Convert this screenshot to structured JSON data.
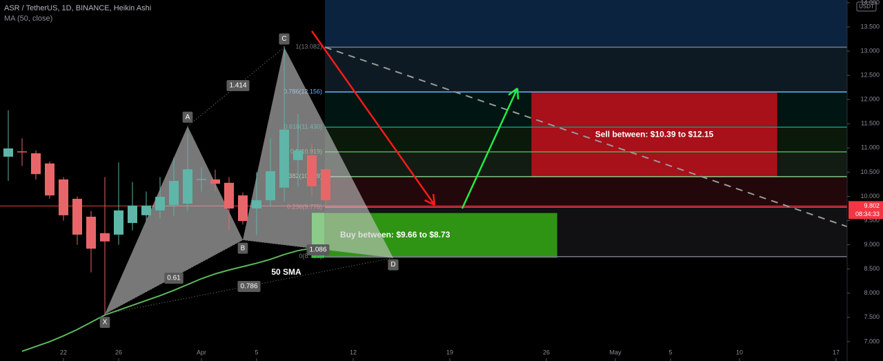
{
  "chart_data": {
    "type": "candlestick",
    "title": "ASR / TetherUS, 1D, BINANCE, Heikin Ashi",
    "subtitle": "MA (50, close)",
    "currency": "USDT",
    "up_color": "#5fb5a8",
    "down_color": "#e8666a",
    "xlim": [
      -0.6,
      60.8
    ],
    "xticks": [
      {
        "value": 4,
        "label": "22"
      },
      {
        "value": 8,
        "label": "26"
      },
      {
        "value": 14,
        "label": "Apr"
      },
      {
        "value": 18,
        "label": "5"
      },
      {
        "value": 25,
        "label": "12"
      },
      {
        "value": 32,
        "label": "19"
      },
      {
        "value": 39,
        "label": "26"
      },
      {
        "value": 44,
        "label": "May"
      },
      {
        "value": 48,
        "label": "5"
      },
      {
        "value": 53,
        "label": "10"
      },
      {
        "value": 60,
        "label": "17"
      }
    ],
    "ylim": [
      6.6,
      14.056
    ],
    "yticks": [
      {
        "value": 7,
        "label": "7.000"
      },
      {
        "value": 7.5,
        "label": "7.500"
      },
      {
        "value": 8,
        "label": "8.000"
      },
      {
        "value": 8.5,
        "label": "8.500"
      },
      {
        "value": 9,
        "label": "9.000"
      },
      {
        "value": 9.5,
        "label": "9.500"
      },
      {
        "value": 10,
        "label": "10.000"
      },
      {
        "value": 10.5,
        "label": "10.500"
      },
      {
        "value": 11,
        "label": "11.000"
      },
      {
        "value": 11.5,
        "label": "11.500"
      },
      {
        "value": 12,
        "label": "12.000"
      },
      {
        "value": 12.5,
        "label": "12.500"
      },
      {
        "value": 13,
        "label": "13.000"
      },
      {
        "value": 13.5,
        "label": "13.500"
      },
      {
        "value": 14,
        "label": "14.000"
      }
    ],
    "grid": false,
    "candles": [
      {
        "open": 10.82,
        "high": 11.78,
        "low": 10.32,
        "close": 10.99
      },
      {
        "open": 10.93,
        "high": 11.2,
        "low": 10.63,
        "close": 10.91
      },
      {
        "open": 10.89,
        "high": 10.95,
        "low": 10.35,
        "close": 10.46
      },
      {
        "open": 10.68,
        "high": 10.72,
        "low": 9.95,
        "close": 10.02
      },
      {
        "open": 10.35,
        "high": 10.4,
        "low": 9.5,
        "close": 9.61
      },
      {
        "open": 9.95,
        "high": 10.0,
        "low": 9.0,
        "close": 9.21
      },
      {
        "open": 9.58,
        "high": 9.7,
        "low": 8.43,
        "close": 8.92
      },
      {
        "open": 9.24,
        "high": 10.4,
        "low": 7.55,
        "close": 9.07
      },
      {
        "open": 9.21,
        "high": 10.7,
        "low": 9.0,
        "close": 9.71
      },
      {
        "open": 9.45,
        "high": 10.3,
        "low": 9.3,
        "close": 9.81
      },
      {
        "open": 9.61,
        "high": 10.1,
        "low": 9.5,
        "close": 9.81
      },
      {
        "open": 9.71,
        "high": 10.4,
        "low": 9.55,
        "close": 9.99
      },
      {
        "open": 9.82,
        "high": 10.8,
        "low": 9.6,
        "close": 10.32
      },
      {
        "open": 9.85,
        "high": 11.3,
        "low": 9.7,
        "close": 10.56
      },
      {
        "open": 10.35,
        "high": 10.6,
        "low": 10.1,
        "close": 10.36
      },
      {
        "open": 10.35,
        "high": 10.55,
        "low": 10.1,
        "close": 10.26
      },
      {
        "open": 10.28,
        "high": 10.4,
        "low": 9.3,
        "close": 9.75
      },
      {
        "open": 10.02,
        "high": 10.08,
        "low": 9.42,
        "close": 9.49
      },
      {
        "open": 9.75,
        "high": 10.5,
        "low": 9.2,
        "close": 9.92
      },
      {
        "open": 9.92,
        "high": 11.2,
        "low": 9.8,
        "close": 10.52
      },
      {
        "open": 10.18,
        "high": 13.1,
        "low": 9.9,
        "close": 11.38
      },
      {
        "open": 10.75,
        "high": 11.7,
        "low": 10.2,
        "close": 10.95
      },
      {
        "open": 10.85,
        "high": 11.1,
        "low": 10.0,
        "close": 10.21
      },
      {
        "open": 10.56,
        "high": 10.6,
        "low": 9.8,
        "close": 9.92
      }
    ],
    "ma": {
      "name": "50 SMA",
      "color": "#5cb85c",
      "values": [
        null,
        6.8,
        6.9,
        7.0,
        7.12,
        7.25,
        7.4,
        7.55,
        7.65,
        7.75,
        7.85,
        7.95,
        8.06,
        8.18,
        8.3,
        8.4,
        8.48,
        8.55,
        8.62,
        8.7,
        8.8,
        8.88,
        8.93,
        null
      ]
    },
    "pattern": {
      "points": [
        {
          "label": "X",
          "x": 7,
          "value": 7.57
        },
        {
          "label": "A",
          "x": 13,
          "value": 11.45
        },
        {
          "label": "B",
          "x": 17,
          "value": 9.1
        },
        {
          "label": "C",
          "x": 20,
          "value": 13.08
        },
        {
          "label": "D",
          "x": 27.9,
          "value": 8.73
        }
      ],
      "ratios": [
        "1.414",
        "0.61",
        "0.786",
        "1.086"
      ]
    },
    "fib_levels": [
      {
        "label": "1(13.082)",
        "value": 13.082,
        "color": "#787b86"
      },
      {
        "label": "0.786(12.156)",
        "value": 12.156,
        "color": "#64b5f6"
      },
      {
        "label": "0.618(11.430)",
        "value": 11.43,
        "color": "#089981"
      },
      {
        "label": "0.5(10.919)",
        "value": 10.919,
        "color": "#4caf50"
      },
      {
        "label": "0.382(10.409)",
        "value": 10.409,
        "color": "#81c784"
      },
      {
        "label": "0.236(9.776)",
        "value": 9.776,
        "color": "#f23645"
      },
      {
        "label": "0(8.756)",
        "value": 8.756,
        "color": "#787b86"
      }
    ],
    "zones": [
      {
        "label": "Buy between: $9.66 to $8.73",
        "low": 8.73,
        "high": 9.66,
        "color": "#2f9414"
      },
      {
        "label": "Sell between: $10.39 to $12.15",
        "low": 10.39,
        "high": 12.15,
        "color": "#a8101a"
      }
    ],
    "last_price": {
      "value": 9.802,
      "label": "9.802"
    },
    "countdown": "08:34:33"
  }
}
